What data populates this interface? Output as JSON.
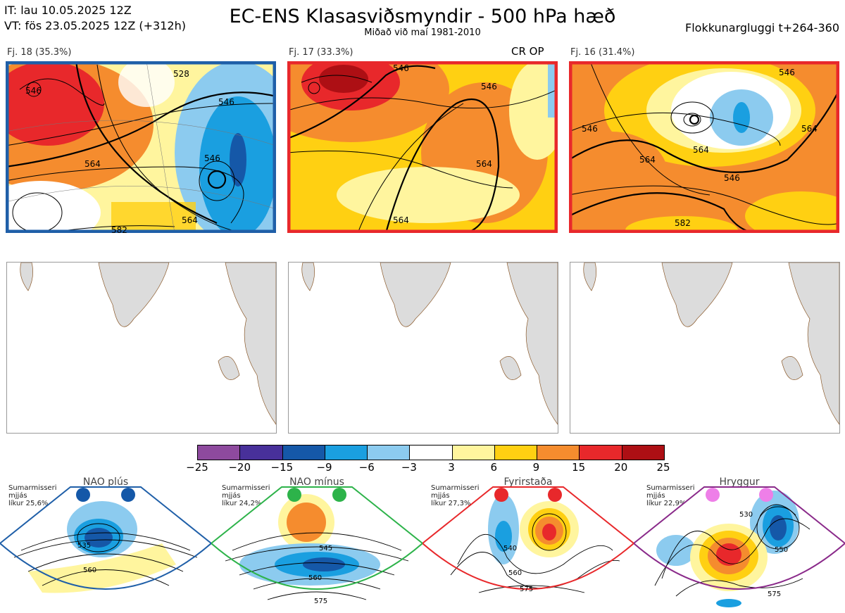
{
  "header": {
    "it_line": "IT: lau 10.05.2025 12Z",
    "vt_line": "VT: fös 23.05.2025 12Z  (+312h)",
    "title": "EC-ENS Klasasviðsmyndir - 500 hPa hæð",
    "subtitle": "Miðað við maí 1981-2010",
    "window": "Flokkunargluggi t+264-360"
  },
  "clusters": [
    {
      "label": "Fj. 18 (35.3%)",
      "frame_color": "#1f5fa8",
      "contours": [
        "546",
        "528",
        "546",
        "564",
        "546",
        "564",
        "582"
      ]
    },
    {
      "label": "Fj. 17 (33.3%)",
      "frame_color": "#e8282b",
      "op_label": "CR OP",
      "contours": [
        "546",
        "546",
        "564",
        "564"
      ]
    },
    {
      "label": "Fj. 16 (31.4%)",
      "frame_color": "#e8282b",
      "contours": [
        "546",
        "546",
        "564",
        "546",
        "564",
        "582",
        "564"
      ]
    }
  ],
  "colorbar": {
    "colors": [
      "#8e4a9e",
      "#48309a",
      "#1558a8",
      "#1a9fe0",
      "#8ccbef",
      "#ffffff",
      "#fff59e",
      "#ffd012",
      "#f58c2e",
      "#e8282b",
      "#ad0f14"
    ],
    "ticks": [
      "−25",
      "−20",
      "−15",
      "−9",
      "−6",
      "−3",
      "3",
      "6",
      "9",
      "15",
      "20",
      "25"
    ]
  },
  "regimes": [
    {
      "name": "NAO plús",
      "info": [
        "Sumarmisseri",
        "mjjás",
        "líkur 25,6%"
      ],
      "dot_color": "#1558a8",
      "frame_color": "#1f5fa8",
      "contours": [
        "535",
        "560"
      ]
    },
    {
      "name": "NAO mínus",
      "info": [
        "Sumarmisseri",
        "mjjás",
        "líkur 24,2%"
      ],
      "dot_color": "#2db34a",
      "frame_color": "#2db34a",
      "contours": [
        "545",
        "560",
        "575"
      ]
    },
    {
      "name": "Fyrirstaða",
      "info": [
        "Sumarmisseri",
        "mjjás",
        "líkur 27,3%"
      ],
      "dot_color": "#e8282b",
      "frame_color": "#e8282b",
      "contours": [
        "540",
        "560",
        "575"
      ]
    },
    {
      "name": "Hryggur",
      "info": [
        "Sumarmisseri",
        "mjjás",
        "líkur 22,9%"
      ],
      "dot_color": "#ee7fe8",
      "frame_color": "#8a2a8a",
      "contours": [
        "530",
        "550",
        "575"
      ]
    }
  ]
}
